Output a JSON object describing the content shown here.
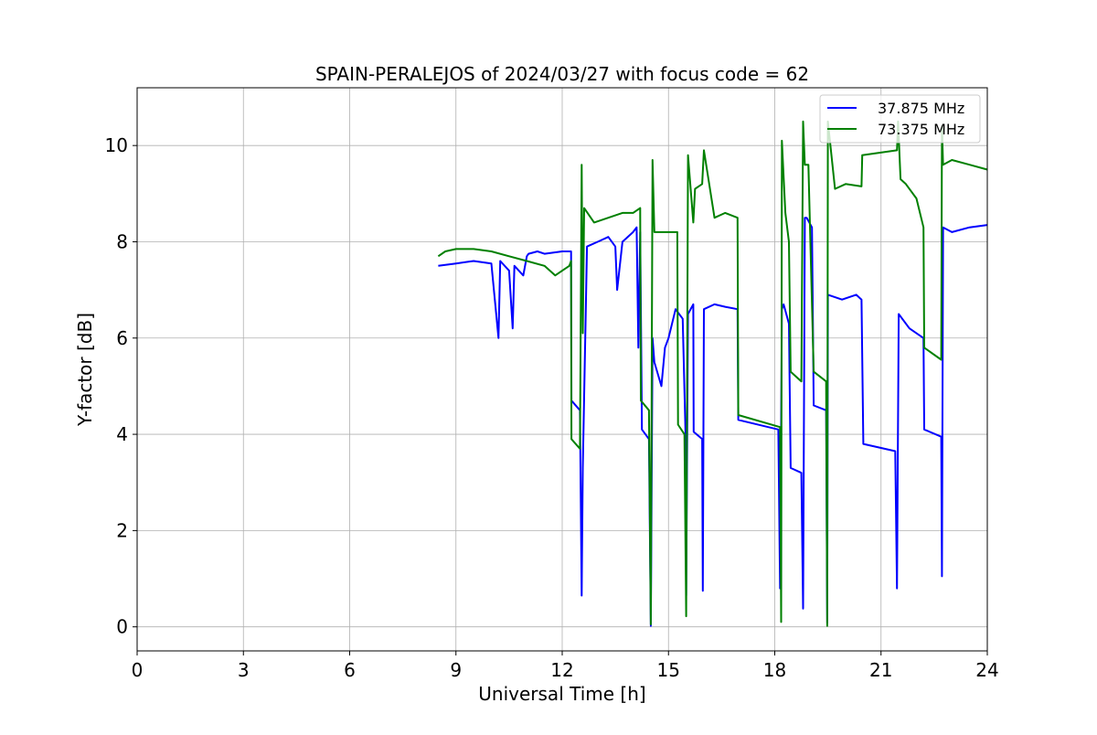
{
  "chart_data": {
    "type": "line",
    "title": "SPAIN-PERALEJOS of 2024/03/27 with focus code = 62",
    "xlabel": "Universal Time [h]",
    "ylabel": "Y-factor [dB]",
    "xlim": [
      0,
      24
    ],
    "ylim": [
      -0.5,
      11.2
    ],
    "xticks": [
      0,
      3,
      6,
      9,
      12,
      15,
      18,
      21,
      24
    ],
    "yticks": [
      0,
      2,
      4,
      6,
      8,
      10
    ],
    "grid": true,
    "legend_position": "top-right",
    "series": [
      {
        "name": "37.875 MHz",
        "color": "#0000ff",
        "x": [
          8.5,
          9.0,
          9.5,
          10.0,
          10.2,
          10.25,
          10.5,
          10.6,
          10.65,
          10.9,
          11.0,
          11.05,
          11.3,
          11.5,
          12.0,
          12.25,
          12.26,
          12.5,
          12.55,
          12.58,
          12.7,
          13.0,
          13.3,
          13.5,
          13.55,
          13.7,
          14.0,
          14.1,
          14.15,
          14.2,
          14.25,
          14.45,
          14.5,
          14.55,
          14.6,
          14.8,
          14.9,
          15.0,
          15.2,
          15.3,
          15.4,
          15.48,
          15.5,
          15.55,
          15.7,
          15.71,
          15.95,
          15.97,
          16.0,
          16.3,
          16.6,
          16.95,
          16.97,
          18.1,
          18.15,
          18.2,
          18.25,
          18.4,
          18.45,
          18.75,
          18.8,
          18.85,
          18.9,
          19.05,
          19.1,
          19.45,
          19.48,
          19.5,
          19.9,
          20.3,
          20.45,
          20.5,
          21.4,
          21.45,
          21.5,
          21.8,
          22.2,
          22.22,
          22.7,
          22.72,
          22.75,
          23.0,
          23.5,
          24.0
        ],
        "y": [
          7.5,
          7.55,
          7.6,
          7.55,
          6.0,
          7.6,
          7.4,
          6.2,
          7.5,
          7.3,
          7.7,
          7.75,
          7.8,
          7.75,
          7.8,
          7.8,
          4.7,
          4.5,
          0.65,
          3.3,
          7.9,
          8.0,
          8.1,
          7.9,
          7.0,
          8.0,
          8.2,
          8.3,
          5.8,
          8.2,
          4.1,
          3.9,
          0.02,
          6.0,
          5.5,
          5.0,
          5.8,
          6.0,
          6.6,
          6.5,
          6.4,
          4.0,
          0.65,
          6.5,
          6.7,
          4.05,
          3.9,
          0.75,
          6.6,
          6.7,
          6.65,
          6.6,
          4.3,
          4.1,
          0.8,
          6.6,
          6.7,
          6.3,
          3.3,
          3.2,
          0.38,
          8.5,
          8.5,
          8.3,
          4.6,
          4.5,
          0.08,
          6.9,
          6.8,
          6.9,
          6.8,
          3.8,
          3.65,
          0.8,
          6.5,
          6.2,
          6.0,
          4.1,
          3.95,
          1.05,
          8.3,
          8.2,
          8.3,
          8.35
        ]
      },
      {
        "name": "73.375 MHz",
        "color": "#008000",
        "x": [
          8.5,
          8.7,
          9.0,
          9.5,
          10.0,
          10.5,
          11.0,
          11.5,
          11.8,
          12.0,
          12.2,
          12.25,
          12.26,
          12.5,
          12.55,
          12.58,
          12.62,
          12.9,
          13.3,
          13.7,
          14.0,
          14.2,
          14.22,
          14.45,
          14.5,
          14.55,
          14.6,
          14.9,
          15.25,
          15.27,
          15.45,
          15.5,
          15.55,
          15.7,
          15.75,
          15.95,
          16.0,
          16.3,
          16.6,
          16.95,
          16.97,
          18.15,
          18.18,
          18.2,
          18.3,
          18.4,
          18.45,
          18.75,
          18.8,
          18.85,
          18.95,
          19.1,
          19.45,
          19.48,
          19.5,
          19.7,
          20.0,
          20.45,
          20.47,
          21.45,
          21.48,
          21.55,
          21.7,
          22.0,
          22.2,
          22.22,
          22.7,
          22.72,
          22.75,
          23.0,
          23.5,
          24.0
        ],
        "y": [
          7.7,
          7.8,
          7.85,
          7.85,
          7.8,
          7.7,
          7.6,
          7.5,
          7.3,
          7.4,
          7.5,
          7.6,
          3.9,
          3.7,
          9.6,
          6.1,
          8.7,
          8.4,
          8.5,
          8.6,
          8.6,
          8.7,
          4.7,
          4.5,
          0.05,
          9.7,
          8.2,
          8.2,
          8.2,
          4.2,
          4.0,
          0.22,
          9.8,
          8.4,
          9.1,
          9.2,
          9.9,
          8.5,
          8.6,
          8.5,
          4.4,
          4.15,
          0.1,
          10.1,
          8.6,
          8.0,
          5.3,
          5.1,
          10.5,
          9.6,
          9.6,
          5.3,
          5.1,
          0.02,
          10.5,
          9.1,
          9.2,
          9.15,
          9.8,
          9.9,
          10.5,
          9.3,
          9.2,
          8.9,
          8.3,
          5.8,
          5.55,
          10.4,
          9.6,
          9.7,
          9.6,
          9.5
        ]
      }
    ]
  }
}
